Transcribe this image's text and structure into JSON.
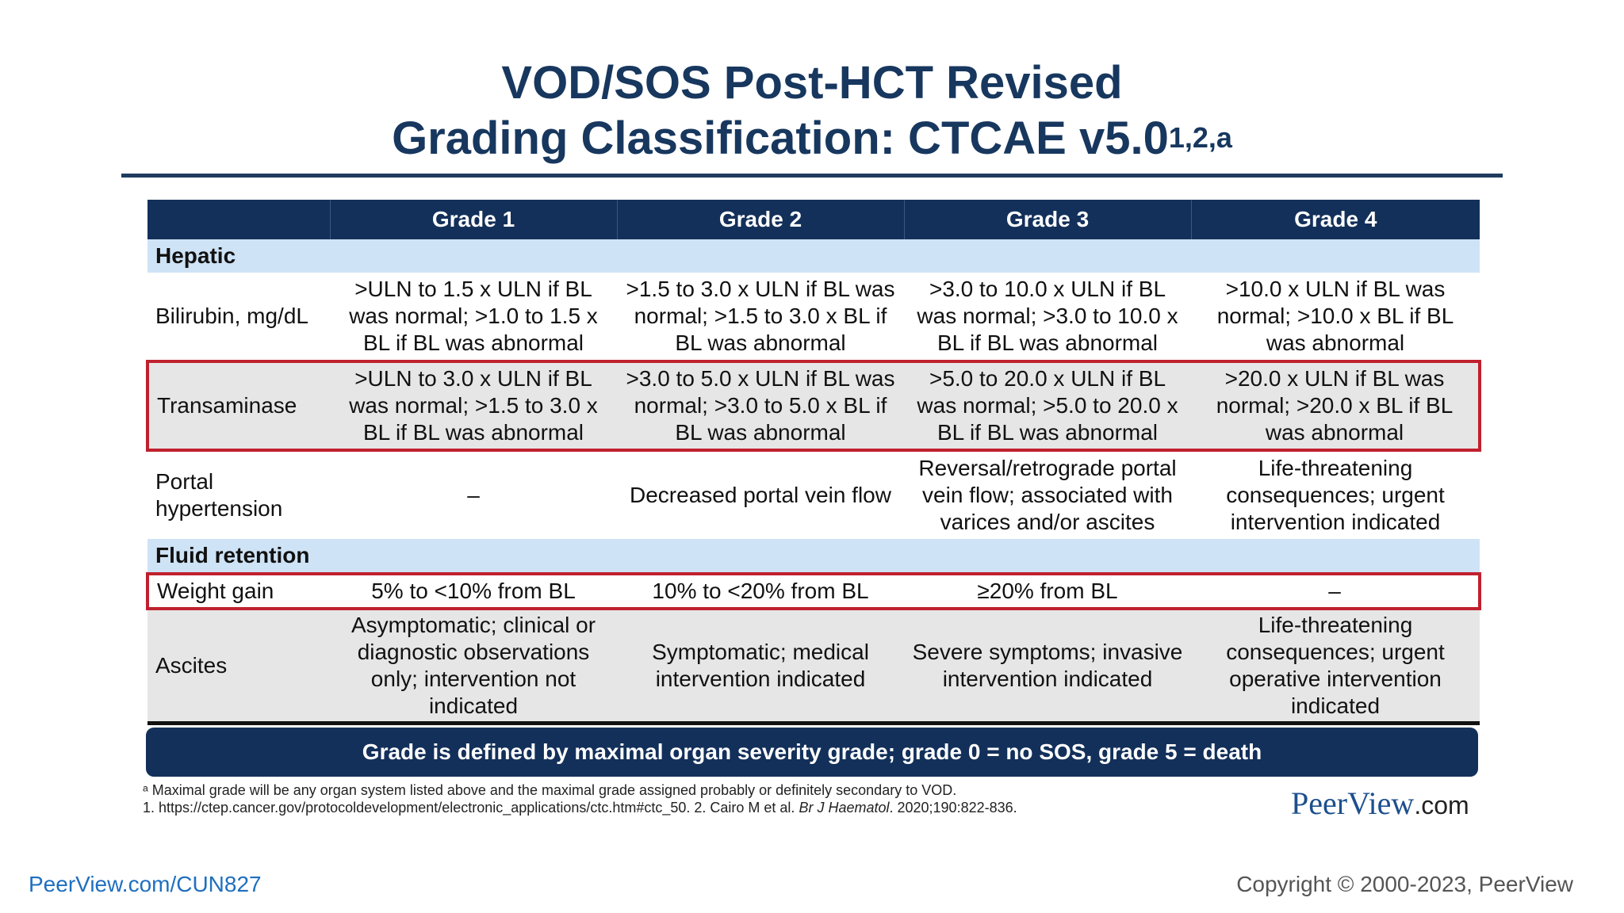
{
  "title": {
    "line1": "VOD/SOS Post-HCT Revised",
    "line2": "Grading Classification: CTCAE v5.0",
    "superscript": "1,2,a"
  },
  "table": {
    "headers": [
      "",
      "Grade 1",
      "Grade 2",
      "Grade 3",
      "Grade 4"
    ],
    "sections": {
      "hepatic": "Hepatic",
      "fluid": "Fluid retention"
    },
    "rows": {
      "bilirubin": {
        "label": "Bilirubin, mg/dL",
        "g1": ">ULN to 1.5 x ULN if BL was normal; >1.0 to 1.5 x BL if BL was abnormal",
        "g2": ">1.5 to 3.0 x ULN if BL was normal; >1.5 to 3.0 x BL if BL was abnormal",
        "g3": ">3.0 to 10.0 x ULN if BL was normal; >3.0 to 10.0 x BL if BL was abnormal",
        "g4": ">10.0 x ULN if BL was normal; >10.0 x BL if BL was abnormal"
      },
      "transaminase": {
        "label": "Transaminase",
        "g1": ">ULN to 3.0 x ULN if BL was normal; >1.5 to 3.0 x BL if BL was abnormal",
        "g2": ">3.0 to 5.0 x ULN if BL was normal; >3.0 to 5.0 x BL if BL was abnormal",
        "g3": ">5.0 to 20.0 x ULN if BL was normal; >5.0 to 20.0 x BL if BL was abnormal",
        "g4": ">20.0 x ULN if BL was normal; >20.0 x BL if BL was abnormal"
      },
      "portal": {
        "label": "Portal hypertension",
        "g1": "–",
        "g2": "Decreased portal vein flow",
        "g3": "Reversal/retrograde portal vein flow; associated with varices and/or ascites",
        "g4": "Life-threatening consequences; urgent intervention indicated"
      },
      "weight": {
        "label": "Weight gain",
        "g1": "5% to <10% from BL",
        "g2": "10% to <20% from BL",
        "g3": "≥20% from BL",
        "g4": "–"
      },
      "ascites": {
        "label": "Ascites",
        "g1": "Asymptomatic; clinical or diagnostic observations only; intervention not indicated",
        "g2": "Symptomatic; medical intervention indicated",
        "g3": "Severe symptoms; invasive intervention indicated",
        "g4": "Life-threatening consequences; urgent operative intervention indicated"
      }
    }
  },
  "summary": "Grade is defined by maximal organ severity grade; grade 0 = no SOS, grade 5 = death",
  "footnotes": {
    "a": "ᵃ Maximal grade will be any organ system listed above and the maximal grade assigned probably or definitely secondary to VOD.",
    "ref_prefix": "1. https://ctep.cancer.gov/protocoldevelopment/electronic_applications/ctc.htm#ctc_50. 2. Cairo M et al. ",
    "ref_journal": "Br J Haematol",
    "ref_suffix": ". 2020;190:822-836."
  },
  "logo": {
    "name": "PeerView",
    "suffix": ".com"
  },
  "footer": {
    "link": "PeerView.com/CUN827",
    "copyright": "Copyright © 2000-2023, PeerView"
  },
  "colors": {
    "title": "#17375e",
    "header_bg": "#13305a",
    "section_bg": "#cfe3f6",
    "highlight_border": "#c0202e",
    "link": "#1f6fbf"
  }
}
